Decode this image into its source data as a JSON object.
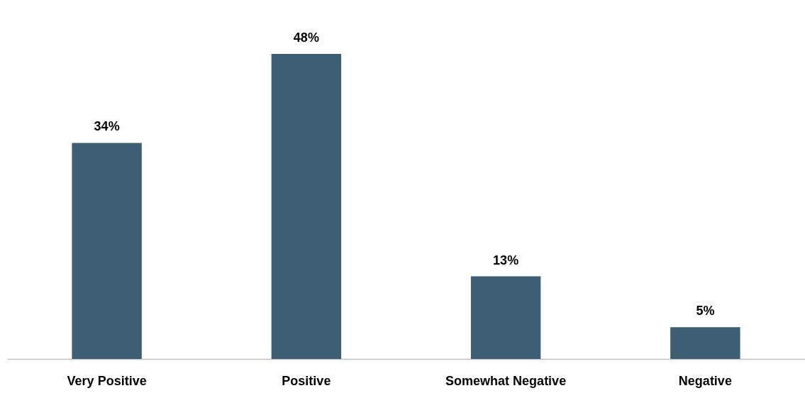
{
  "chart_data": {
    "type": "bar",
    "categories": [
      "Very Positive",
      "Positive",
      "Somewhat Negative",
      "Negative"
    ],
    "values": [
      34,
      48,
      13,
      5
    ],
    "value_labels": [
      "34%",
      "48%",
      "13%",
      "5%"
    ],
    "color": "#3e5f73",
    "grid": false
  }
}
